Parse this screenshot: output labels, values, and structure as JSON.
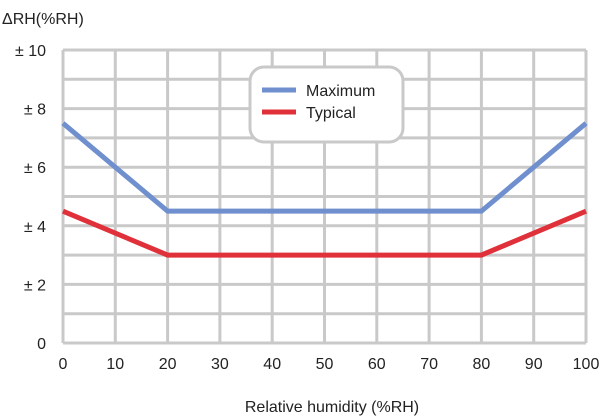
{
  "chart_data": {
    "type": "line",
    "title": "",
    "ylabel": "ΔRH(%RH)",
    "xlabel": "Relative humidity (%RH)",
    "xlim": [
      0,
      100
    ],
    "ylim": [
      0,
      10
    ],
    "x_ticks": [
      0,
      10,
      20,
      30,
      40,
      50,
      60,
      70,
      80,
      90,
      100
    ],
    "x_tick_labels": [
      "0",
      "10",
      "20",
      "30",
      "40",
      "50",
      "60",
      "70",
      "80",
      "90",
      "100"
    ],
    "y_ticks": [
      0,
      2,
      4,
      6,
      8,
      10
    ],
    "y_tick_labels": [
      "0",
      "± 2",
      "± 4",
      "± 6",
      "± 8",
      "± 10"
    ],
    "grid": true,
    "legend_position": "top-center",
    "series": [
      {
        "name": "Maximum",
        "color": "#6f8fce",
        "x": [
          0,
          20,
          80,
          100
        ],
        "y": [
          7.5,
          4.5,
          4.5,
          7.5
        ]
      },
      {
        "name": "Typical",
        "color": "#e0303a",
        "x": [
          0,
          20,
          80,
          100
        ],
        "y": [
          4.5,
          3.0,
          3.0,
          4.5
        ]
      }
    ]
  }
}
